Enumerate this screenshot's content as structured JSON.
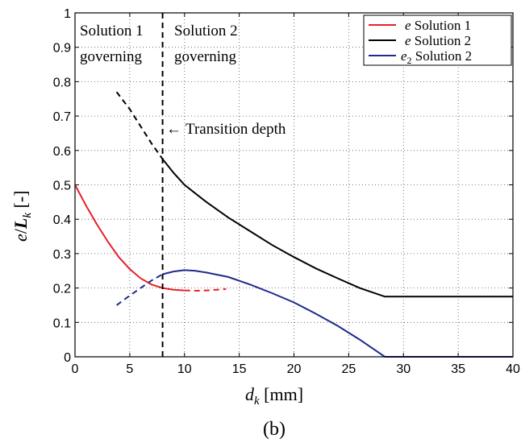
{
  "chart_data": {
    "type": "line",
    "xlabel_var": "d",
    "xlabel_sub": "k",
    "xlabel_unit": " [mm]",
    "ylabel_num": "e",
    "ylabel_slash": "/",
    "ylabel_den": "L",
    "ylabel_sub": "k",
    "ylabel_unit": " [-]",
    "caption": "(b)",
    "xlim": [
      0,
      40
    ],
    "ylim": [
      0,
      1
    ],
    "xticks": [
      "0",
      "5",
      "10",
      "15",
      "20",
      "25",
      "30",
      "35",
      "40"
    ],
    "yticks": [
      "0",
      "0.1",
      "0.2",
      "0.3",
      "0.4",
      "0.5",
      "0.6",
      "0.7",
      "0.8",
      "0.9",
      "1"
    ],
    "grid": true,
    "legend_position": "top-right",
    "transition_depth_x": 8,
    "annotations": {
      "region_left_line1": "Solution 1",
      "region_left_line2": "governing",
      "region_right_line1": "Solution 2",
      "region_right_line2": "governing",
      "arrow": "←",
      "transition_label": "Transition depth"
    },
    "colors": {
      "solution1": "#e8202a",
      "solution2_e": "#000000",
      "solution2_e2": "#1f2a8c"
    },
    "series": [
      {
        "name_var": "e",
        "name_sub": "",
        "name_text": " Solution 1",
        "color": "#e8202a",
        "solid": [
          [
            0,
            0.5
          ],
          [
            1,
            0.44
          ],
          [
            2,
            0.385
          ],
          [
            3,
            0.335
          ],
          [
            4,
            0.29
          ],
          [
            5,
            0.255
          ],
          [
            6,
            0.228
          ],
          [
            7,
            0.21
          ],
          [
            8,
            0.2
          ],
          [
            9,
            0.195
          ],
          [
            10,
            0.193
          ]
        ],
        "dashed": [
          [
            10,
            0.193
          ],
          [
            11,
            0.192
          ],
          [
            12,
            0.193
          ],
          [
            13,
            0.195
          ],
          [
            13.8,
            0.197
          ]
        ]
      },
      {
        "name_var": "e",
        "name_sub": "",
        "name_text": " Solution 2",
        "color": "#000000",
        "solid": [
          [
            8,
            0.575
          ],
          [
            9,
            0.535
          ],
          [
            10,
            0.5
          ],
          [
            11,
            0.475
          ],
          [
            12,
            0.45
          ],
          [
            14,
            0.405
          ],
          [
            16,
            0.365
          ],
          [
            18,
            0.325
          ],
          [
            20,
            0.29
          ],
          [
            22,
            0.257
          ],
          [
            24,
            0.228
          ],
          [
            26,
            0.2
          ],
          [
            28.3,
            0.175
          ],
          [
            40,
            0.175
          ]
        ],
        "dashed": [
          [
            3.8,
            0.77
          ],
          [
            5,
            0.72
          ],
          [
            6,
            0.67
          ],
          [
            7,
            0.62
          ],
          [
            8,
            0.575
          ]
        ]
      },
      {
        "name_var": "e",
        "name_sub": "2",
        "name_text": " Solution 2",
        "color": "#1f2a8c",
        "solid": [
          [
            8,
            0.24
          ],
          [
            9,
            0.248
          ],
          [
            10,
            0.252
          ],
          [
            11,
            0.25
          ],
          [
            12,
            0.245
          ],
          [
            14,
            0.232
          ],
          [
            16,
            0.21
          ],
          [
            18,
            0.185
          ],
          [
            20,
            0.158
          ],
          [
            22,
            0.125
          ],
          [
            24,
            0.09
          ],
          [
            26,
            0.05
          ],
          [
            28.3,
            0
          ],
          [
            40,
            0
          ]
        ],
        "dashed": [
          [
            3.8,
            0.15
          ],
          [
            5,
            0.178
          ],
          [
            6,
            0.2
          ],
          [
            7,
            0.222
          ],
          [
            8,
            0.24
          ]
        ]
      }
    ]
  }
}
